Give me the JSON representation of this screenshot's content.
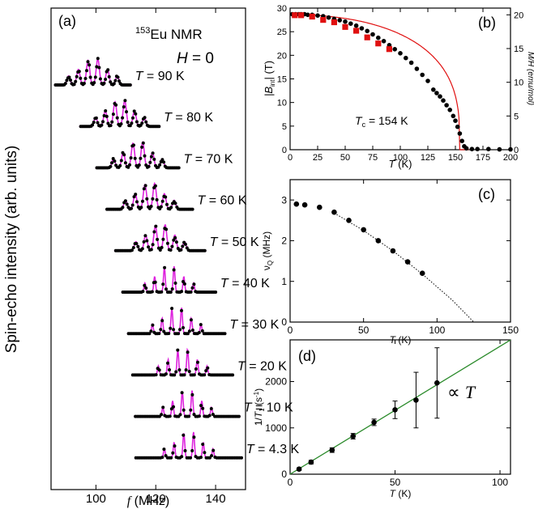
{
  "chart_data": [
    {
      "panel": "(a)",
      "type": "line",
      "ylabel": "Spin-echo intensity (arb. units)",
      "xlabel_symbol": "f",
      "xlabel_unit": "(MHz)",
      "xlim": [
        85,
        150
      ],
      "xticks": [
        100,
        120,
        140
      ],
      "annotation_isotope": "153",
      "annotation_nucleus": "Eu NMR",
      "annotation_field_symbol": "H",
      "annotation_field_value": "= 0",
      "temp_symbol": "T",
      "line_color": "#dd22dd",
      "marker_color": "#000000",
      "series": [
        {
          "label": "= 90 K",
          "T": 90,
          "center": 99.0
        },
        {
          "label": "= 80 K",
          "T": 80,
          "center": 108.0
        },
        {
          "label": "= 70 K",
          "T": 70,
          "center": 114.0
        },
        {
          "label": "= 60 K",
          "T": 60,
          "center": 118.0
        },
        {
          "label": "= 50 K",
          "T": 50,
          "center": 121.5
        },
        {
          "label": "= 40 K",
          "T": 40,
          "center": 124.5
        },
        {
          "label": "= 30 K",
          "T": 30,
          "center": 127.0
        },
        {
          "label": "= 20 K",
          "T": 20,
          "center": 129.0
        },
        {
          "label": "= 10 K",
          "T": 10,
          "center": 130.5
        },
        {
          "label": "= 4.3 K",
          "T": 4.3,
          "center": 131.0
        }
      ]
    },
    {
      "panel": "(b)",
      "type": "scatter",
      "xlabel_symbol": "T",
      "xlabel_unit": "(K)",
      "ylabel_left": "(T)",
      "ylabel_left_symbol": "|B",
      "ylabel_left_sub": "int",
      "ylabel_right": "M/H (emu/mol)",
      "xlim": [
        0,
        200
      ],
      "ylim_left": [
        0,
        30
      ],
      "ylim_right": [
        0,
        21
      ],
      "xticks": [
        0,
        25,
        50,
        75,
        100,
        125,
        150,
        175,
        200
      ],
      "yticks_left": [
        0,
        5,
        10,
        15,
        20,
        25,
        30
      ],
      "yticks_right": [
        0,
        5,
        10,
        15,
        20
      ],
      "annotation_symbol": "T",
      "annotation_sub": "c",
      "annotation_value": "= 154 K",
      "curve_color": "#e01010",
      "circles": {
        "x": [
          2,
          5,
          8,
          10,
          13,
          16,
          20,
          25,
          30,
          35,
          40,
          45,
          50,
          55,
          60,
          65,
          70,
          75,
          80,
          85,
          90,
          95,
          100,
          105,
          110,
          115,
          120,
          125,
          130,
          133,
          136,
          139,
          142,
          145,
          148,
          150,
          152,
          154,
          156,
          158,
          160,
          165,
          170,
          180,
          190,
          200
        ],
        "y": [
          20.1,
          20.1,
          20.1,
          20.1,
          20.1,
          20.0,
          20.0,
          19.9,
          19.8,
          19.6,
          19.4,
          19.2,
          19.0,
          18.7,
          18.4,
          18.0,
          17.6,
          17.1,
          16.6,
          16.1,
          15.5,
          14.9,
          14.3,
          13.6,
          12.9,
          12.0,
          11.1,
          10.2,
          8.9,
          8.4,
          7.9,
          7.3,
          6.6,
          5.9,
          5.0,
          4.3,
          3.4,
          2.4,
          1.3,
          0.5,
          0.2,
          0.1,
          0.1,
          0.1,
          0.05,
          0.05
        ]
      },
      "squares": {
        "x": [
          4.3,
          10,
          20,
          30,
          40,
          50,
          60,
          70,
          80,
          90
        ],
        "y": [
          28.5,
          28.5,
          28.2,
          27.5,
          27.0,
          26.0,
          25.2,
          23.8,
          22.5,
          21.3
        ]
      },
      "fit_curve_Bint": {
        "Tc": 154,
        "B0": 28.6,
        "exponent": 0.32
      }
    },
    {
      "panel": "(c)",
      "type": "scatter",
      "xlabel_symbol": "T",
      "xlabel_unit": "(K)",
      "ylabel_symbol": "ν",
      "ylabel_sub": "Q",
      "ylabel_unit": "(MHz)",
      "xlim": [
        0,
        150
      ],
      "ylim": [
        0,
        3.5
      ],
      "xticks": [
        0,
        50,
        100,
        150
      ],
      "yticks": [
        0,
        1,
        2,
        3
      ],
      "points": {
        "x": [
          4.3,
          10,
          20,
          30,
          40,
          50,
          60,
          70,
          80,
          90
        ],
        "y": [
          2.9,
          2.88,
          2.82,
          2.7,
          2.5,
          2.27,
          2.0,
          1.75,
          1.48,
          1.2
        ]
      },
      "dotted_line": {
        "x": [
          30,
          50,
          70,
          90,
          110,
          125
        ],
        "y": [
          2.68,
          2.25,
          1.75,
          1.18,
          0.55,
          0.0
        ]
      }
    },
    {
      "panel": "(d)",
      "type": "scatter",
      "xlabel_symbol": "T",
      "xlabel_unit": "(K)",
      "ylabel_prefix": "1/",
      "ylabel_symbol": "T",
      "ylabel_sub": "1",
      "ylabel_unit_base": "(s",
      "ylabel_unit_sup": "-1",
      "ylabel_unit_end": ")",
      "xlim": [
        0,
        105
      ],
      "ylim": [
        0,
        2900
      ],
      "xticks": [
        0,
        50,
        100
      ],
      "yticks": [
        0,
        1000,
        2000
      ],
      "annotation_symbol": "∝",
      "annotation_var": "T",
      "line_color": "#2a8a2a",
      "points": {
        "x": [
          4.3,
          10,
          20,
          30,
          40,
          50,
          60,
          70
        ],
        "y": [
          110,
          260,
          520,
          820,
          1120,
          1390,
          1600,
          1970
        ],
        "err": [
          30,
          40,
          50,
          60,
          70,
          190,
          600,
          760
        ]
      },
      "fit_line": {
        "slope": 27.6,
        "intercept": 0
      }
    }
  ]
}
